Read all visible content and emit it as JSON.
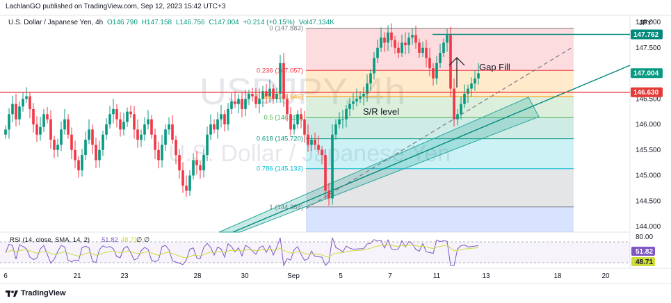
{
  "header": {
    "publisher": "LachlanGO published on TradingView.com, Sep 12, 2023 15:42 UTC+3",
    "symbol": "U.S. Dollar / Japanese Yen, 4h",
    "open": "O146.790",
    "high": "H147.158",
    "low": "L146.756",
    "close": "C147.004",
    "change": "+0.214 (+0.15%)",
    "volume": "Vol47.134K",
    "currency": "JPY"
  },
  "watermark": {
    "ticker": "USDJPY, 4h",
    "name": "U.S. Dollar / Japanese Yen"
  },
  "brand": {
    "logo_icon": "tradingview-logo-icon",
    "text": "TradingView"
  },
  "colors": {
    "up": "#089981",
    "down": "#f23645",
    "sr": "#e53935",
    "gap": "#00897b",
    "rsi": "#7e57c2"
  },
  "annotations": {
    "gap_fill": "Gap Fill",
    "sr_level": "S/R level"
  },
  "price_tags": [
    {
      "label": "147.762",
      "value": 147.762,
      "color": "#00897b"
    },
    {
      "label": "147.004",
      "value": 147.004,
      "color": "#089981"
    },
    {
      "label": "146.630",
      "value": 146.63,
      "color": "#e53935"
    }
  ],
  "rsi": {
    "label": "RSI (14, close, SMA, 14, 2)",
    "value": "51.82",
    "sma": "48.71",
    "extra": "∅ ∅",
    "level_top": "80.00",
    "tag_value": "51.82",
    "tag_sma": "48.71"
  },
  "chart_data": {
    "type": "candlestick",
    "title": "USDJPY, 4h",
    "ylim": [
      144.0,
      148.0
    ],
    "y_ticks": [
      "148.000",
      "147.500",
      "147.000",
      "146.500",
      "146.000",
      "145.500",
      "145.000",
      "144.500",
      "144.000"
    ],
    "x_ticks": [
      "6",
      "21",
      "23",
      "28",
      "30",
      "Sep",
      "5",
      "7",
      "11",
      "13",
      "18",
      "20"
    ],
    "fibonacci": [
      {
        "ratio": "0",
        "price": 147.883,
        "label": "0 (147.883)"
      },
      {
        "ratio": "0.236",
        "price": 147.057,
        "label": "0.236 (147.057)"
      },
      {
        "ratio": "0.382",
        "price": 146.546,
        "label": "0.382 (146.546)"
      },
      {
        "ratio": "0.5",
        "price": 146.133,
        "label": "0.5 (146.133)"
      },
      {
        "ratio": "0.618",
        "price": 145.72,
        "label": "0.618 (145.720)"
      },
      {
        "ratio": "0.786",
        "price": 145.133,
        "label": "0.786 (145.133)"
      },
      {
        "ratio": "1",
        "price": 144.384,
        "label": "1 (144.384)"
      }
    ],
    "levels": {
      "gap_fill": 147.762,
      "sr": 146.63
    },
    "closes": [
      145.9,
      146.2,
      146.4,
      146.1,
      146.35,
      146.5,
      146.55,
      146.3,
      146.0,
      145.8,
      145.95,
      146.2,
      146.1,
      145.7,
      145.5,
      145.6,
      145.9,
      146.1,
      145.8,
      145.5,
      145.3,
      145.1,
      145.4,
      145.7,
      145.9,
      145.6,
      145.3,
      145.5,
      145.8,
      146.0,
      146.2,
      146.3,
      146.1,
      145.9,
      146.05,
      146.25,
      146.2,
      145.9,
      145.7,
      145.8,
      146.0,
      146.1,
      145.8,
      145.5,
      145.3,
      145.6,
      145.9,
      146.0,
      145.7,
      145.4,
      145.1,
      144.8,
      144.7,
      145.0,
      145.3,
      145.2,
      145.1,
      145.4,
      145.8,
      146.0,
      145.9,
      146.1,
      146.2,
      146.0,
      146.3,
      146.45,
      146.4,
      146.5,
      146.3,
      146.5,
      146.6,
      146.55,
      146.4,
      146.5,
      146.65,
      146.55,
      146.7,
      146.5,
      146.6,
      147.2,
      146.5,
      146.2,
      145.9,
      146.0,
      146.2,
      146.1,
      145.8,
      145.6,
      145.7,
      145.6,
      145.5,
      145.4,
      144.7,
      144.55,
      145.8,
      146.0,
      146.1,
      146.1,
      146.3,
      146.4,
      146.45,
      146.5,
      146.55,
      146.6,
      146.8,
      147.0,
      147.3,
      147.5,
      147.7,
      147.6,
      147.8,
      147.65,
      147.5,
      147.4,
      147.6,
      147.55,
      147.7,
      147.75,
      147.6,
      147.4,
      147.5,
      147.3,
      147.1,
      146.9,
      147.2,
      147.4,
      147.6,
      147.75,
      146.7,
      146.1,
      146.2,
      146.4,
      146.6,
      146.7,
      146.8,
      146.9,
      147.0
    ]
  }
}
